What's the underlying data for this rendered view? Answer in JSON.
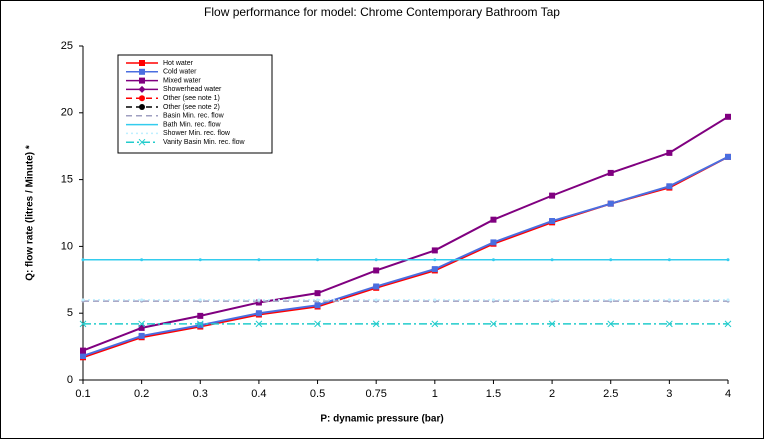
{
  "chart_data": {
    "type": "line",
    "title": "Flow performance for model: Chrome Contemporary Bathroom Tap",
    "x_label": "P: dynamic pressure (bar)",
    "y_label": "Q: flow rate (litres / Minute) *",
    "categories": [
      "0.1",
      "0.2",
      "0.3",
      "0.4",
      "0.5",
      "0.75",
      "1",
      "1.5",
      "2",
      "2.5",
      "3",
      "4"
    ],
    "ylim": [
      0,
      25
    ],
    "yticks": [
      0,
      5,
      10,
      15,
      20,
      25
    ],
    "grid": false,
    "legend": "top-left",
    "series": [
      {
        "name": "Hot water",
        "color": "#ff0000",
        "dash": "solid",
        "marker": "square",
        "values": [
          1.7,
          3.2,
          4.0,
          4.9,
          5.5,
          6.9,
          8.2,
          10.2,
          11.8,
          13.2,
          14.4,
          16.7
        ]
      },
      {
        "name": "Cold water",
        "color": "#4a6ee0",
        "dash": "solid",
        "marker": "square",
        "values": [
          1.8,
          3.3,
          4.1,
          5.0,
          5.6,
          7.0,
          8.3,
          10.3,
          11.9,
          13.2,
          14.5,
          16.7
        ]
      },
      {
        "name": "Mixed water",
        "color": "#800080",
        "dash": "solid",
        "marker": "square",
        "values": [
          2.2,
          3.9,
          4.8,
          5.8,
          6.5,
          8.2,
          9.7,
          12.0,
          13.8,
          15.5,
          17.0,
          19.7
        ]
      },
      {
        "name": "Showerhead water",
        "color": "#800080",
        "dash": "solid",
        "marker": "diamond",
        "values": [
          null,
          null,
          null,
          null,
          null,
          null,
          null,
          null,
          null,
          null,
          null,
          null
        ]
      },
      {
        "name": "Other (see note 1)",
        "color": "#ff0000",
        "dash": "dashed",
        "marker": "circle",
        "values": [
          null,
          null,
          null,
          null,
          null,
          null,
          null,
          null,
          null,
          null,
          null,
          null
        ]
      },
      {
        "name": "Other (see note 2)",
        "color": "#000000",
        "dash": "dashed",
        "marker": "circle",
        "values": [
          null,
          null,
          null,
          null,
          null,
          null,
          null,
          null,
          null,
          null,
          null,
          null
        ]
      },
      {
        "name": "Basin Min. rec. flow",
        "color": "#9f9fc0",
        "dash": "dashed",
        "marker": "none",
        "values": [
          5.9,
          5.9,
          5.9,
          5.9,
          5.9,
          5.9,
          5.9,
          5.9,
          5.9,
          5.9,
          5.9,
          5.9
        ]
      },
      {
        "name": "Bath Min. rec. flow",
        "color": "#33ccee",
        "dash": "solid",
        "marker": "none",
        "values": [
          9,
          9,
          9,
          9,
          9,
          9,
          9,
          9,
          9,
          9,
          9,
          9
        ]
      },
      {
        "name": "Shower Min. rec. flow",
        "color": "#bfefff",
        "dash": "dotted",
        "marker": "none",
        "values": [
          6,
          6,
          6,
          6,
          6,
          6,
          6,
          6,
          6,
          6,
          6,
          6
        ]
      },
      {
        "name": "Vanity Basin Min. rec. flow",
        "color": "#22cccc",
        "dash": "dashdot",
        "marker": "x",
        "values": [
          4.2,
          4.2,
          4.2,
          4.2,
          4.2,
          4.2,
          4.2,
          4.2,
          4.2,
          4.2,
          4.2,
          4.2
        ]
      }
    ]
  }
}
